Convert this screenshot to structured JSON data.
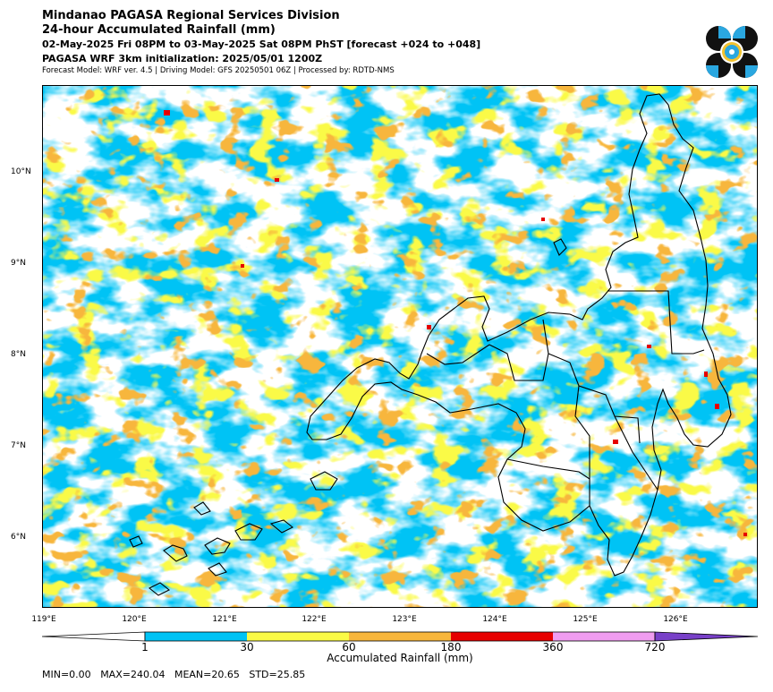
{
  "header": {
    "title": "Mindanao PAGASA Regional Services Division",
    "subtitle": "24-hour Accumulated Rainfall (mm)",
    "period": "02-May-2025 Fri 08PM to 03-May-2025 Sat 08PM PhST [forecast +024 to +048]",
    "init": "PAGASA WRF 3km initialization: 2025/05/01 1200Z",
    "model": "Forecast Model: WRF ver. 4.5 | Driving Model: GFS 20250501 06Z | Processed by: RDTD-NMS"
  },
  "map": {
    "x_ticks": [
      "119°E",
      "120°E",
      "121°E",
      "122°E",
      "123°E",
      "124°E",
      "125°E",
      "126°E"
    ],
    "y_ticks": [
      "10°N",
      "9°N",
      "8°N",
      "7°N",
      "6°N"
    ]
  },
  "colorbar": {
    "title": "Accumulated Rainfall (mm)",
    "ticks": [
      "1",
      "30",
      "60",
      "180",
      "360",
      "720"
    ],
    "colors": {
      "c1": "#00c3f5",
      "c2": "#fafa46",
      "c3": "#f7b63c",
      "c4": "#e60000",
      "c5": "#f09cf0",
      "c6": "#7840c8"
    }
  },
  "stats": {
    "min": "MIN=0.00",
    "max": "MAX=240.04",
    "mean": "MEAN=20.65",
    "std": "STD=25.85"
  }
}
